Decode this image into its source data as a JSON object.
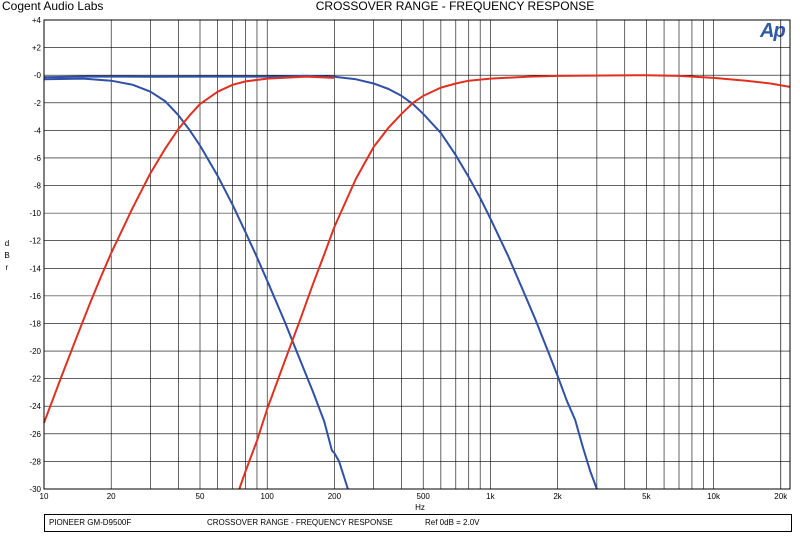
{
  "header": {
    "company": "Cogent Audio Labs",
    "title": "CROSSOVER RANGE -  FREQUENCY RESPONSE",
    "logo_text": "Ap"
  },
  "footer": {
    "device": "PIONEER GM-D9500F",
    "description": "CROSSOVER RANGE  -  FREQUENCY RESPONSE",
    "reference": "Ref 0dB = 2.0V"
  },
  "chart_data": {
    "type": "line",
    "title": "CROSSOVER RANGE -  FREQUENCY RESPONSE",
    "xlabel": "Hz",
    "ylabel": "dBr",
    "xscale": "log",
    "xlim": [
      10,
      22000
    ],
    "ylim": [
      -30,
      4
    ],
    "grid": true,
    "x_ticks": [
      10,
      20,
      50,
      100,
      200,
      500,
      1000,
      2000,
      5000,
      10000,
      20000
    ],
    "x_tick_labels": [
      "10",
      "20",
      "50",
      "100",
      "200",
      "500",
      "1k",
      "2k",
      "5k",
      "10k",
      "20k"
    ],
    "y_ticks": [
      4,
      2,
      0,
      -2,
      -4,
      -6,
      -8,
      -10,
      -12,
      -14,
      -16,
      -18,
      -20,
      -22,
      -24,
      -26,
      -28,
      -30
    ],
    "y_tick_labels": [
      "+4",
      "+2",
      "-0",
      "-2",
      "-4",
      "-6",
      "-8",
      "-10",
      "-12",
      "-14",
      "-16",
      "-18",
      "-20",
      "-22",
      "-24",
      "-26",
      "-28",
      "-30"
    ],
    "colors": {
      "blue": "#3050a8",
      "red": "#e03020",
      "grid": "#000000"
    },
    "series": [
      {
        "color": "#3050a8",
        "points": [
          [
            10,
            -0.3
          ],
          [
            15,
            -0.25
          ],
          [
            20,
            -0.4
          ],
          [
            25,
            -0.7
          ],
          [
            30,
            -1.2
          ],
          [
            35,
            -1.9
          ],
          [
            40,
            -2.9
          ],
          [
            45,
            -4.0
          ],
          [
            50,
            -5.1
          ],
          [
            60,
            -7.3
          ],
          [
            70,
            -9.4
          ],
          [
            80,
            -11.4
          ],
          [
            90,
            -13.2
          ],
          [
            100,
            -14.9
          ],
          [
            120,
            -17.9
          ],
          [
            140,
            -20.6
          ],
          [
            160,
            -22.9
          ],
          [
            180,
            -25.1
          ],
          [
            195,
            -27.2
          ],
          [
            200,
            -27.4
          ],
          [
            210,
            -28.0
          ],
          [
            230,
            -30.0
          ]
        ]
      },
      {
        "color": "#3050a8",
        "points": [
          [
            10,
            -0.15
          ],
          [
            15,
            -0.1
          ],
          [
            20,
            -0.1
          ],
          [
            30,
            -0.12
          ],
          [
            50,
            -0.1
          ],
          [
            60,
            -0.1
          ],
          [
            80,
            -0.1
          ],
          [
            100,
            -0.1
          ],
          [
            150,
            -0.05
          ],
          [
            200,
            -0.12
          ],
          [
            250,
            -0.3
          ],
          [
            300,
            -0.6
          ],
          [
            350,
            -1.0
          ],
          [
            400,
            -1.5
          ],
          [
            450,
            -2.1
          ],
          [
            500,
            -2.8
          ],
          [
            600,
            -4.2
          ],
          [
            700,
            -5.8
          ],
          [
            800,
            -7.4
          ],
          [
            900,
            -8.9
          ],
          [
            1000,
            -10.4
          ],
          [
            1200,
            -13.1
          ],
          [
            1400,
            -15.6
          ],
          [
            1600,
            -17.8
          ],
          [
            1800,
            -19.9
          ],
          [
            2000,
            -21.8
          ],
          [
            2200,
            -23.6
          ],
          [
            2400,
            -25.0
          ],
          [
            2600,
            -27.0
          ],
          [
            2800,
            -28.7
          ],
          [
            3000,
            -30.0
          ]
        ]
      },
      {
        "color": "#e03020",
        "points": [
          [
            10,
            -25.2
          ],
          [
            12,
            -21.8
          ],
          [
            14,
            -19.0
          ],
          [
            16,
            -16.6
          ],
          [
            18,
            -14.6
          ],
          [
            20,
            -12.9
          ],
          [
            25,
            -9.6
          ],
          [
            30,
            -7.1
          ],
          [
            35,
            -5.3
          ],
          [
            40,
            -3.9
          ],
          [
            45,
            -2.9
          ],
          [
            50,
            -2.1
          ],
          [
            60,
            -1.2
          ],
          [
            70,
            -0.7
          ],
          [
            80,
            -0.45
          ],
          [
            100,
            -0.25
          ],
          [
            150,
            -0.1
          ],
          [
            200,
            -0.2
          ]
        ]
      },
      {
        "color": "#e03020",
        "points": [
          [
            75,
            -30.0
          ],
          [
            80,
            -28.7
          ],
          [
            90,
            -26.5
          ],
          [
            100,
            -24.2
          ],
          [
            120,
            -20.7
          ],
          [
            140,
            -17.8
          ],
          [
            160,
            -15.2
          ],
          [
            180,
            -13.0
          ],
          [
            200,
            -11.0
          ],
          [
            250,
            -7.5
          ],
          [
            300,
            -5.2
          ],
          [
            350,
            -3.8
          ],
          [
            400,
            -2.8
          ],
          [
            450,
            -2.0
          ],
          [
            500,
            -1.5
          ],
          [
            600,
            -0.9
          ],
          [
            700,
            -0.6
          ],
          [
            800,
            -0.4
          ],
          [
            1000,
            -0.25
          ],
          [
            1500,
            -0.1
          ],
          [
            2000,
            -0.05
          ],
          [
            5000,
            0.0
          ],
          [
            7000,
            -0.05
          ],
          [
            10000,
            -0.2
          ],
          [
            14000,
            -0.4
          ],
          [
            18000,
            -0.6
          ],
          [
            22000,
            -0.85
          ]
        ]
      }
    ]
  }
}
